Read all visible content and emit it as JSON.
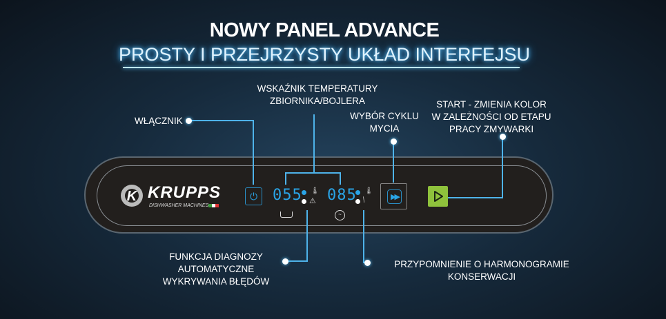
{
  "header": {
    "title": "NOWY PANEL ADVANCE",
    "subtitle": "PROSTY I PRZEJRZYSTY UKŁAD INTERFEJSU"
  },
  "logo": {
    "brand": "KRUPPS",
    "tagline": "DISHWASHER MACHINES"
  },
  "panel": {
    "display_tank": "055",
    "display_boiler": "085"
  },
  "labels": {
    "power": "WŁĄCZNIK",
    "temp_1": "WSKAŹNIK TEMPERATURY",
    "temp_2": "ZBIORNIKA/BOJLERA",
    "cycle_1": "WYBÓR CYKLU",
    "cycle_2": "MYCIA",
    "start_1": "START - ZMIENIA  KOLOR",
    "start_2": "W ZALEŻNOŚCI OD ETAPU",
    "start_3": "PRACY ZMYWARKI",
    "diag_1": "FUNKCJA DIAGNOZY",
    "diag_2": "AUTOMATYCZNE",
    "diag_3": "WYKRYWANIA BŁĘDÓW",
    "maint_1": "PRZYPOMNIENIE O HARMONOGRAMIE",
    "maint_2": "KONSERWACJI"
  },
  "colors": {
    "accent": "#4eb3ea",
    "start": "#8fc23c",
    "display": "#2aa4e6"
  }
}
